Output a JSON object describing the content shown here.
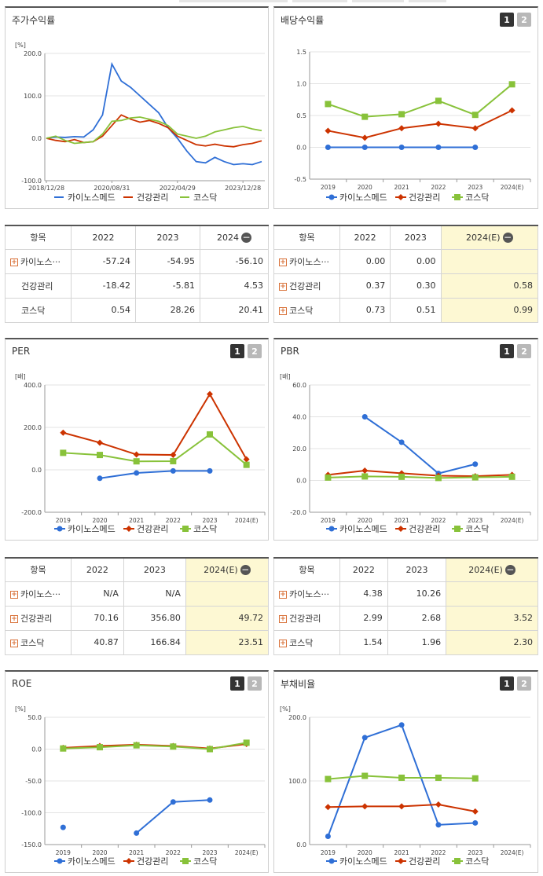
{
  "colors": {
    "s1": "#2f6fd6",
    "s2": "#cc3300",
    "s3": "#88c23a"
  },
  "series_names": [
    "카이노스메드",
    "건강관리",
    "코스닥"
  ],
  "pager": [
    "1",
    "2"
  ],
  "stock": {
    "title": "주가수익률",
    "chart_data": {
      "type": "line",
      "title": "주가수익률",
      "ylabel": "[%]",
      "ylim": [
        -100,
        200
      ],
      "yticks": [
        "200.0",
        "100.0",
        "0.0",
        "-100.0"
      ],
      "xticks": [
        "2018/12/28",
        "2020/08/31",
        "2022/04/29",
        "2023/12/28"
      ],
      "x": [
        "2018/12/28",
        "2019/03",
        "2019/06",
        "2019/09",
        "2019/12",
        "2020/03",
        "2020/06",
        "2020/08/31",
        "2020/11",
        "2021/02",
        "2021/05",
        "2021/08",
        "2021/11",
        "2022/02",
        "2022/04/29",
        "2022/07",
        "2022/10",
        "2023/01",
        "2023/04",
        "2023/07",
        "2023/10",
        "2023/12/28",
        "2024/03",
        "2024/06"
      ],
      "series": [
        {
          "name": "카이노스메드",
          "values": [
            0,
            3,
            2,
            4,
            3,
            20,
            55,
            175,
            135,
            120,
            100,
            80,
            60,
            25,
            0,
            -30,
            -55,
            -58,
            -45,
            -55,
            -62,
            -60,
            -62,
            -55
          ]
        },
        {
          "name": "건강관리",
          "values": [
            0,
            -5,
            -8,
            -3,
            -10,
            -8,
            5,
            30,
            55,
            45,
            38,
            42,
            35,
            25,
            5,
            -5,
            -15,
            -18,
            -14,
            -18,
            -20,
            -15,
            -12,
            -6
          ]
        },
        {
          "name": "코스닥",
          "values": [
            0,
            5,
            -5,
            -12,
            -10,
            -8,
            10,
            40,
            42,
            48,
            50,
            45,
            40,
            30,
            10,
            5,
            0,
            5,
            15,
            20,
            25,
            28,
            22,
            18
          ]
        }
      ]
    }
  },
  "dividend": {
    "title": "배당수익률",
    "chart_data": {
      "type": "line",
      "title": "배당수익률",
      "ylim": [
        -0.5,
        1.5
      ],
      "yticks": [
        "1.5",
        "1.0",
        "0.5",
        "0.0",
        "-0.5"
      ],
      "categories": [
        "2019",
        "2020",
        "2021",
        "2022",
        "2023",
        "2024(E)"
      ],
      "series": [
        {
          "name": "카이노스메드",
          "values": [
            0.0,
            0.0,
            0.0,
            0.0,
            0.0,
            null
          ]
        },
        {
          "name": "건강관리",
          "values": [
            0.26,
            0.15,
            0.3,
            0.37,
            0.3,
            0.58
          ]
        },
        {
          "name": "코스닥",
          "values": [
            0.68,
            0.48,
            0.52,
            0.73,
            0.51,
            0.99
          ]
        }
      ]
    }
  },
  "per": {
    "title": "PER",
    "chart_data": {
      "type": "line",
      "title": "PER",
      "ylabel": "[배]",
      "ylim": [
        -200,
        400
      ],
      "yticks": [
        "400.0",
        "200.0",
        "0.0",
        "-200.0"
      ],
      "categories": [
        "2019",
        "2020",
        "2021",
        "2022",
        "2023",
        "2024(E)"
      ],
      "series": [
        {
          "name": "카이노스메드",
          "values": [
            null,
            -40,
            -15,
            -5,
            -5,
            null
          ]
        },
        {
          "name": "건강관리",
          "values": [
            175,
            128,
            72,
            70.16,
            356.8,
            49.72
          ]
        },
        {
          "name": "코스닥",
          "values": [
            80,
            70,
            40,
            40.87,
            166.84,
            23.51
          ]
        }
      ]
    }
  },
  "pbr": {
    "title": "PBR",
    "chart_data": {
      "type": "line",
      "title": "PBR",
      "ylabel": "[배]",
      "ylim": [
        -20,
        60
      ],
      "yticks": [
        "60.0",
        "40.0",
        "20.0",
        "0.0",
        "-20.0"
      ],
      "categories": [
        "2019",
        "2020",
        "2021",
        "2022",
        "2023",
        "2024(E)"
      ],
      "series": [
        {
          "name": "카이노스메드",
          "values": [
            null,
            40,
            24,
            4.38,
            10.26,
            null
          ]
        },
        {
          "name": "건강관리",
          "values": [
            3.5,
            6.2,
            4.5,
            2.99,
            2.68,
            3.52
          ]
        },
        {
          "name": "코스닥",
          "values": [
            1.8,
            2.5,
            2.3,
            1.54,
            1.96,
            2.3
          ]
        }
      ]
    }
  },
  "roe": {
    "title": "ROE",
    "chart_data": {
      "type": "line",
      "title": "ROE",
      "ylabel": "[%]",
      "ylim": [
        -150,
        50
      ],
      "yticks": [
        "50.0",
        "0.0",
        "-50.0",
        "-100.0",
        "-150.0"
      ],
      "categories": [
        "2019",
        "2020",
        "2021",
        "2022",
        "2023",
        "2024(E)"
      ],
      "series": [
        {
          "name": "카이노스메드",
          "values": [
            -123,
            null,
            -132,
            -83,
            -80,
            null
          ]
        },
        {
          "name": "건강관리",
          "values": [
            2,
            5,
            7,
            5,
            1,
            8
          ]
        },
        {
          "name": "코스닥",
          "values": [
            1,
            3,
            6,
            4,
            0,
            10
          ]
        }
      ]
    }
  },
  "debt": {
    "title": "부채비율",
    "chart_data": {
      "type": "line",
      "title": "부채비율",
      "ylabel": "[%]",
      "ylim": [
        0,
        200
      ],
      "yticks": [
        "200.0",
        "100.0",
        "0.0"
      ],
      "categories": [
        "2019",
        "2020",
        "2021",
        "2022",
        "2023",
        "2024(E)"
      ],
      "series": [
        {
          "name": "카이노스메드",
          "values": [
            13,
            168,
            188,
            31,
            34,
            null
          ]
        },
        {
          "name": "건강관리",
          "values": [
            59,
            60,
            60,
            63,
            52,
            null
          ]
        },
        {
          "name": "코스닥",
          "values": [
            103,
            108,
            105,
            105,
            104,
            null
          ]
        }
      ]
    }
  },
  "tables": {
    "t1": {
      "head": [
        "항목",
        "2022",
        "2023",
        "2024"
      ],
      "minus": "−",
      "rows": [
        {
          "name": "카이노스···",
          "plus": true,
          "v": [
            "-57.24",
            "-54.95",
            "-56.10"
          ]
        },
        {
          "name": "건강관리",
          "plus": false,
          "v": [
            "-18.42",
            "-5.81",
            "4.53"
          ]
        },
        {
          "name": "코스닥",
          "plus": false,
          "v": [
            "0.54",
            "28.26",
            "20.41"
          ]
        }
      ]
    },
    "t2": {
      "head": [
        "항목",
        "2022",
        "2023",
        "2024(E)"
      ],
      "minus": "−",
      "rows": [
        {
          "name": "카이노스···",
          "plus": true,
          "v": [
            "0.00",
            "0.00",
            ""
          ]
        },
        {
          "name": "건강관리",
          "plus": true,
          "v": [
            "0.37",
            "0.30",
            "0.58"
          ]
        },
        {
          "name": "코스닥",
          "plus": true,
          "v": [
            "0.73",
            "0.51",
            "0.99"
          ]
        }
      ]
    },
    "t3": {
      "head": [
        "항목",
        "2022",
        "2023",
        "2024(E)"
      ],
      "minus": "−",
      "rows": [
        {
          "name": "카이노스···",
          "plus": true,
          "v": [
            "N/A",
            "N/A",
            ""
          ]
        },
        {
          "name": "건강관리",
          "plus": true,
          "v": [
            "70.16",
            "356.80",
            "49.72"
          ]
        },
        {
          "name": "코스닥",
          "plus": true,
          "v": [
            "40.87",
            "166.84",
            "23.51"
          ]
        }
      ]
    },
    "t4": {
      "head": [
        "항목",
        "2022",
        "2023",
        "2024(E)"
      ],
      "minus": "−",
      "rows": [
        {
          "name": "카이노스···",
          "plus": true,
          "v": [
            "4.38",
            "10.26",
            ""
          ]
        },
        {
          "name": "건강관리",
          "plus": true,
          "v": [
            "2.99",
            "2.68",
            "3.52"
          ]
        },
        {
          "name": "코스닥",
          "plus": true,
          "v": [
            "1.54",
            "1.96",
            "2.30"
          ]
        }
      ]
    }
  }
}
